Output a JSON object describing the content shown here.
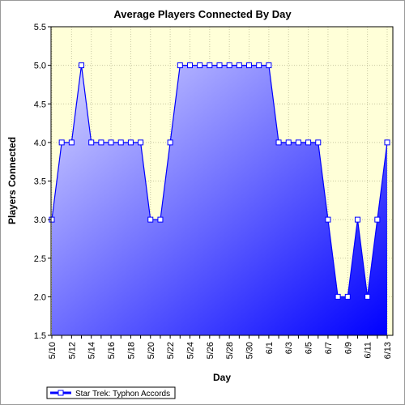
{
  "chart_data": {
    "type": "area",
    "title": "Average Players Connected By Day",
    "xlabel": "Day",
    "ylabel": "Players Connected",
    "ylim": [
      1.5,
      5.5
    ],
    "yticks": [
      1.5,
      2.0,
      2.5,
      3.0,
      3.5,
      4.0,
      4.5,
      5.0,
      5.5
    ],
    "ytick_labels": [
      "1.5",
      "2.0",
      "2.5",
      "3.0",
      "3.5",
      "4.0",
      "4.5",
      "5.0",
      "5.5"
    ],
    "x": [
      "5/10",
      "5/11",
      "5/12",
      "5/13",
      "5/14",
      "5/15",
      "5/16",
      "5/17",
      "5/18",
      "5/19",
      "5/20",
      "5/21",
      "5/22",
      "5/23",
      "5/24",
      "5/25",
      "5/26",
      "5/27",
      "5/28",
      "5/29",
      "5/30",
      "5/31",
      "6/1",
      "6/2",
      "6/3",
      "6/4",
      "6/5",
      "6/6",
      "6/7",
      "6/8",
      "6/9",
      "6/10",
      "6/11",
      "6/12",
      "6/13"
    ],
    "xtick_labels": [
      "5/10",
      "5/12",
      "5/14",
      "5/16",
      "5/18",
      "5/20",
      "5/22",
      "5/24",
      "5/26",
      "5/28",
      "5/30",
      "6/1",
      "6/3",
      "6/5",
      "6/7",
      "6/9",
      "6/11",
      "6/13"
    ],
    "series": [
      {
        "name": "Star Trek: Typhon Accords",
        "values": [
          3,
          4,
          4,
          5,
          4,
          4,
          4,
          4,
          4,
          4,
          3,
          3,
          4,
          5,
          5,
          5,
          5,
          5,
          5,
          5,
          5,
          5,
          5,
          4,
          4,
          4,
          4,
          4,
          3,
          2,
          2,
          3,
          2,
          3,
          4
        ]
      }
    ],
    "grid": true,
    "legend_position": "bottom-left",
    "colors": {
      "plot_background": "#ffffd8",
      "fill_top": "#d8d8ff",
      "fill_bottom": "#0000ff",
      "line": "#0000ff",
      "marker_fill": "#ffffff"
    }
  }
}
